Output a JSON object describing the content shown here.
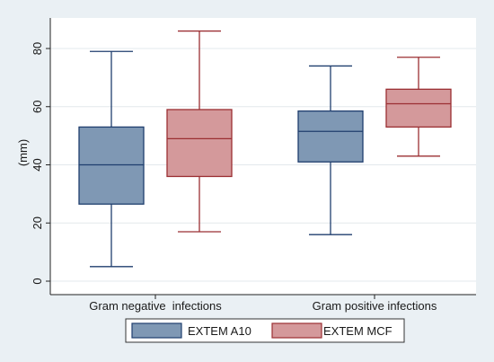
{
  "chart_data": {
    "type": "box",
    "ylabel": "(mm)",
    "ylim": [
      -2,
      90
    ],
    "yticks": [
      0,
      20,
      40,
      60,
      80
    ],
    "grid": true,
    "legend_position": "bottom",
    "categories": [
      "Gram negative  infections",
      "Gram positive infections"
    ],
    "series": [
      {
        "name": "EXTEM A10",
        "color": "#7f98b4",
        "stroke": "#1f3e6e",
        "stats": [
          {
            "min": 5,
            "q1": 26.5,
            "median": 40,
            "q3": 53,
            "max": 79
          },
          {
            "min": 16,
            "q1": 41,
            "median": 51.5,
            "q3": 58.5,
            "max": 74
          }
        ]
      },
      {
        "name": "EXTEM MCF",
        "color": "#d4999b",
        "stroke": "#9b2f33",
        "stats": [
          {
            "min": 17,
            "q1": 36,
            "median": 49,
            "q3": 59,
            "max": 86
          },
          {
            "min": 43,
            "q1": 53,
            "median": 61,
            "q3": 66,
            "max": 77
          }
        ]
      }
    ]
  }
}
